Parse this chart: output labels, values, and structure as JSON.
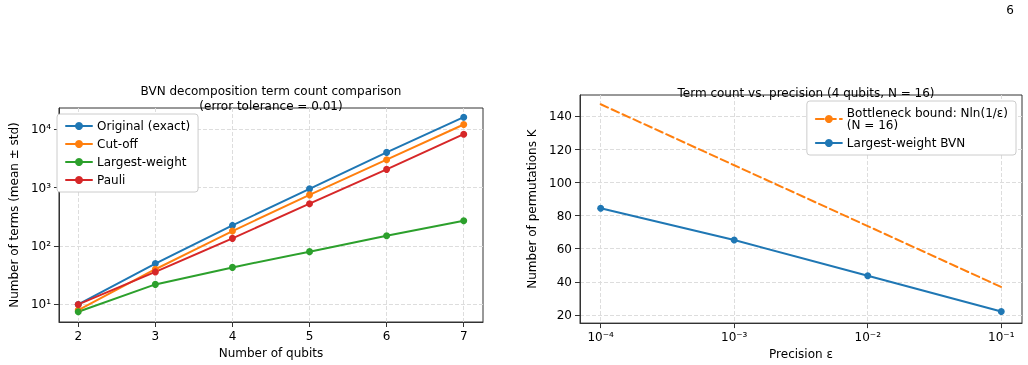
{
  "chart_data": [
    {
      "type": "line",
      "title": "BVN decomposition term count comparison\n(error tolerance = 0.01)",
      "xlabel": "Number of qubits",
      "ylabel": "Number of terms (mean ± std)",
      "x": [
        2,
        3,
        4,
        5,
        6,
        7
      ],
      "xlim": [
        1.75,
        7.25
      ],
      "xticks": [
        2,
        3,
        4,
        5,
        6,
        7
      ],
      "log": "y",
      "ylim": [
        5,
        23000
      ],
      "yticks": [
        {
          "value": 10,
          "label": "10¹"
        },
        {
          "value": 100,
          "label": "10²"
        },
        {
          "value": 1000,
          "label": "10³"
        },
        {
          "value": 10000,
          "label": "10⁴"
        }
      ],
      "series": [
        {
          "name": "Original (exact)",
          "color": "#1f77b4",
          "values": [
            10,
            50,
            225,
            950,
            4000,
            16000
          ]
        },
        {
          "name": "Cut-off",
          "color": "#ff7f0e",
          "values": [
            8,
            40,
            180,
            750,
            3000,
            12000
          ]
        },
        {
          "name": "Largest-weight",
          "color": "#2ca02c",
          "values": [
            7.5,
            22,
            43,
            80,
            150,
            270
          ]
        },
        {
          "name": "Pauli",
          "color": "#d62728",
          "values": [
            10,
            36,
            135,
            530,
            2050,
            8200
          ]
        }
      ],
      "marker": "circle",
      "grid": true,
      "legend": "top left"
    },
    {
      "type": "line",
      "title": "Term count vs. precision (4 qubits, N = 16)",
      "xlabel": "Precision ε",
      "ylabel": "Number of permutations K",
      "x": [
        0.0001,
        0.001,
        0.01,
        0.1
      ],
      "log": "x",
      "xlim": [
        7e-05,
        0.143
      ],
      "xticks": [
        {
          "value": 0.0001,
          "label": "10⁻⁴"
        },
        {
          "value": 0.001,
          "label": "10⁻³"
        },
        {
          "value": 0.01,
          "label": "10⁻²"
        },
        {
          "value": 0.1,
          "label": "10⁻¹"
        }
      ],
      "ylim": [
        15,
        153
      ],
      "yticks": [
        20,
        40,
        60,
        80,
        100,
        120,
        140
      ],
      "series": [
        {
          "name": "Bottleneck bound: Nln(1/ε)\n(N = 16)",
          "color": "#ff7f0e",
          "values": [
            147.4,
            110.5,
            73.7,
            36.8
          ],
          "line_style": "dashed",
          "marker": "none"
        },
        {
          "name": "Largest-weight BVN",
          "color": "#1f77b4",
          "values": [
            84.5,
            65.3,
            43.6,
            22
          ],
          "marker": "circle"
        }
      ],
      "grid": true,
      "legend": "top right",
      "annotations": [
        "6"
      ]
    }
  ]
}
